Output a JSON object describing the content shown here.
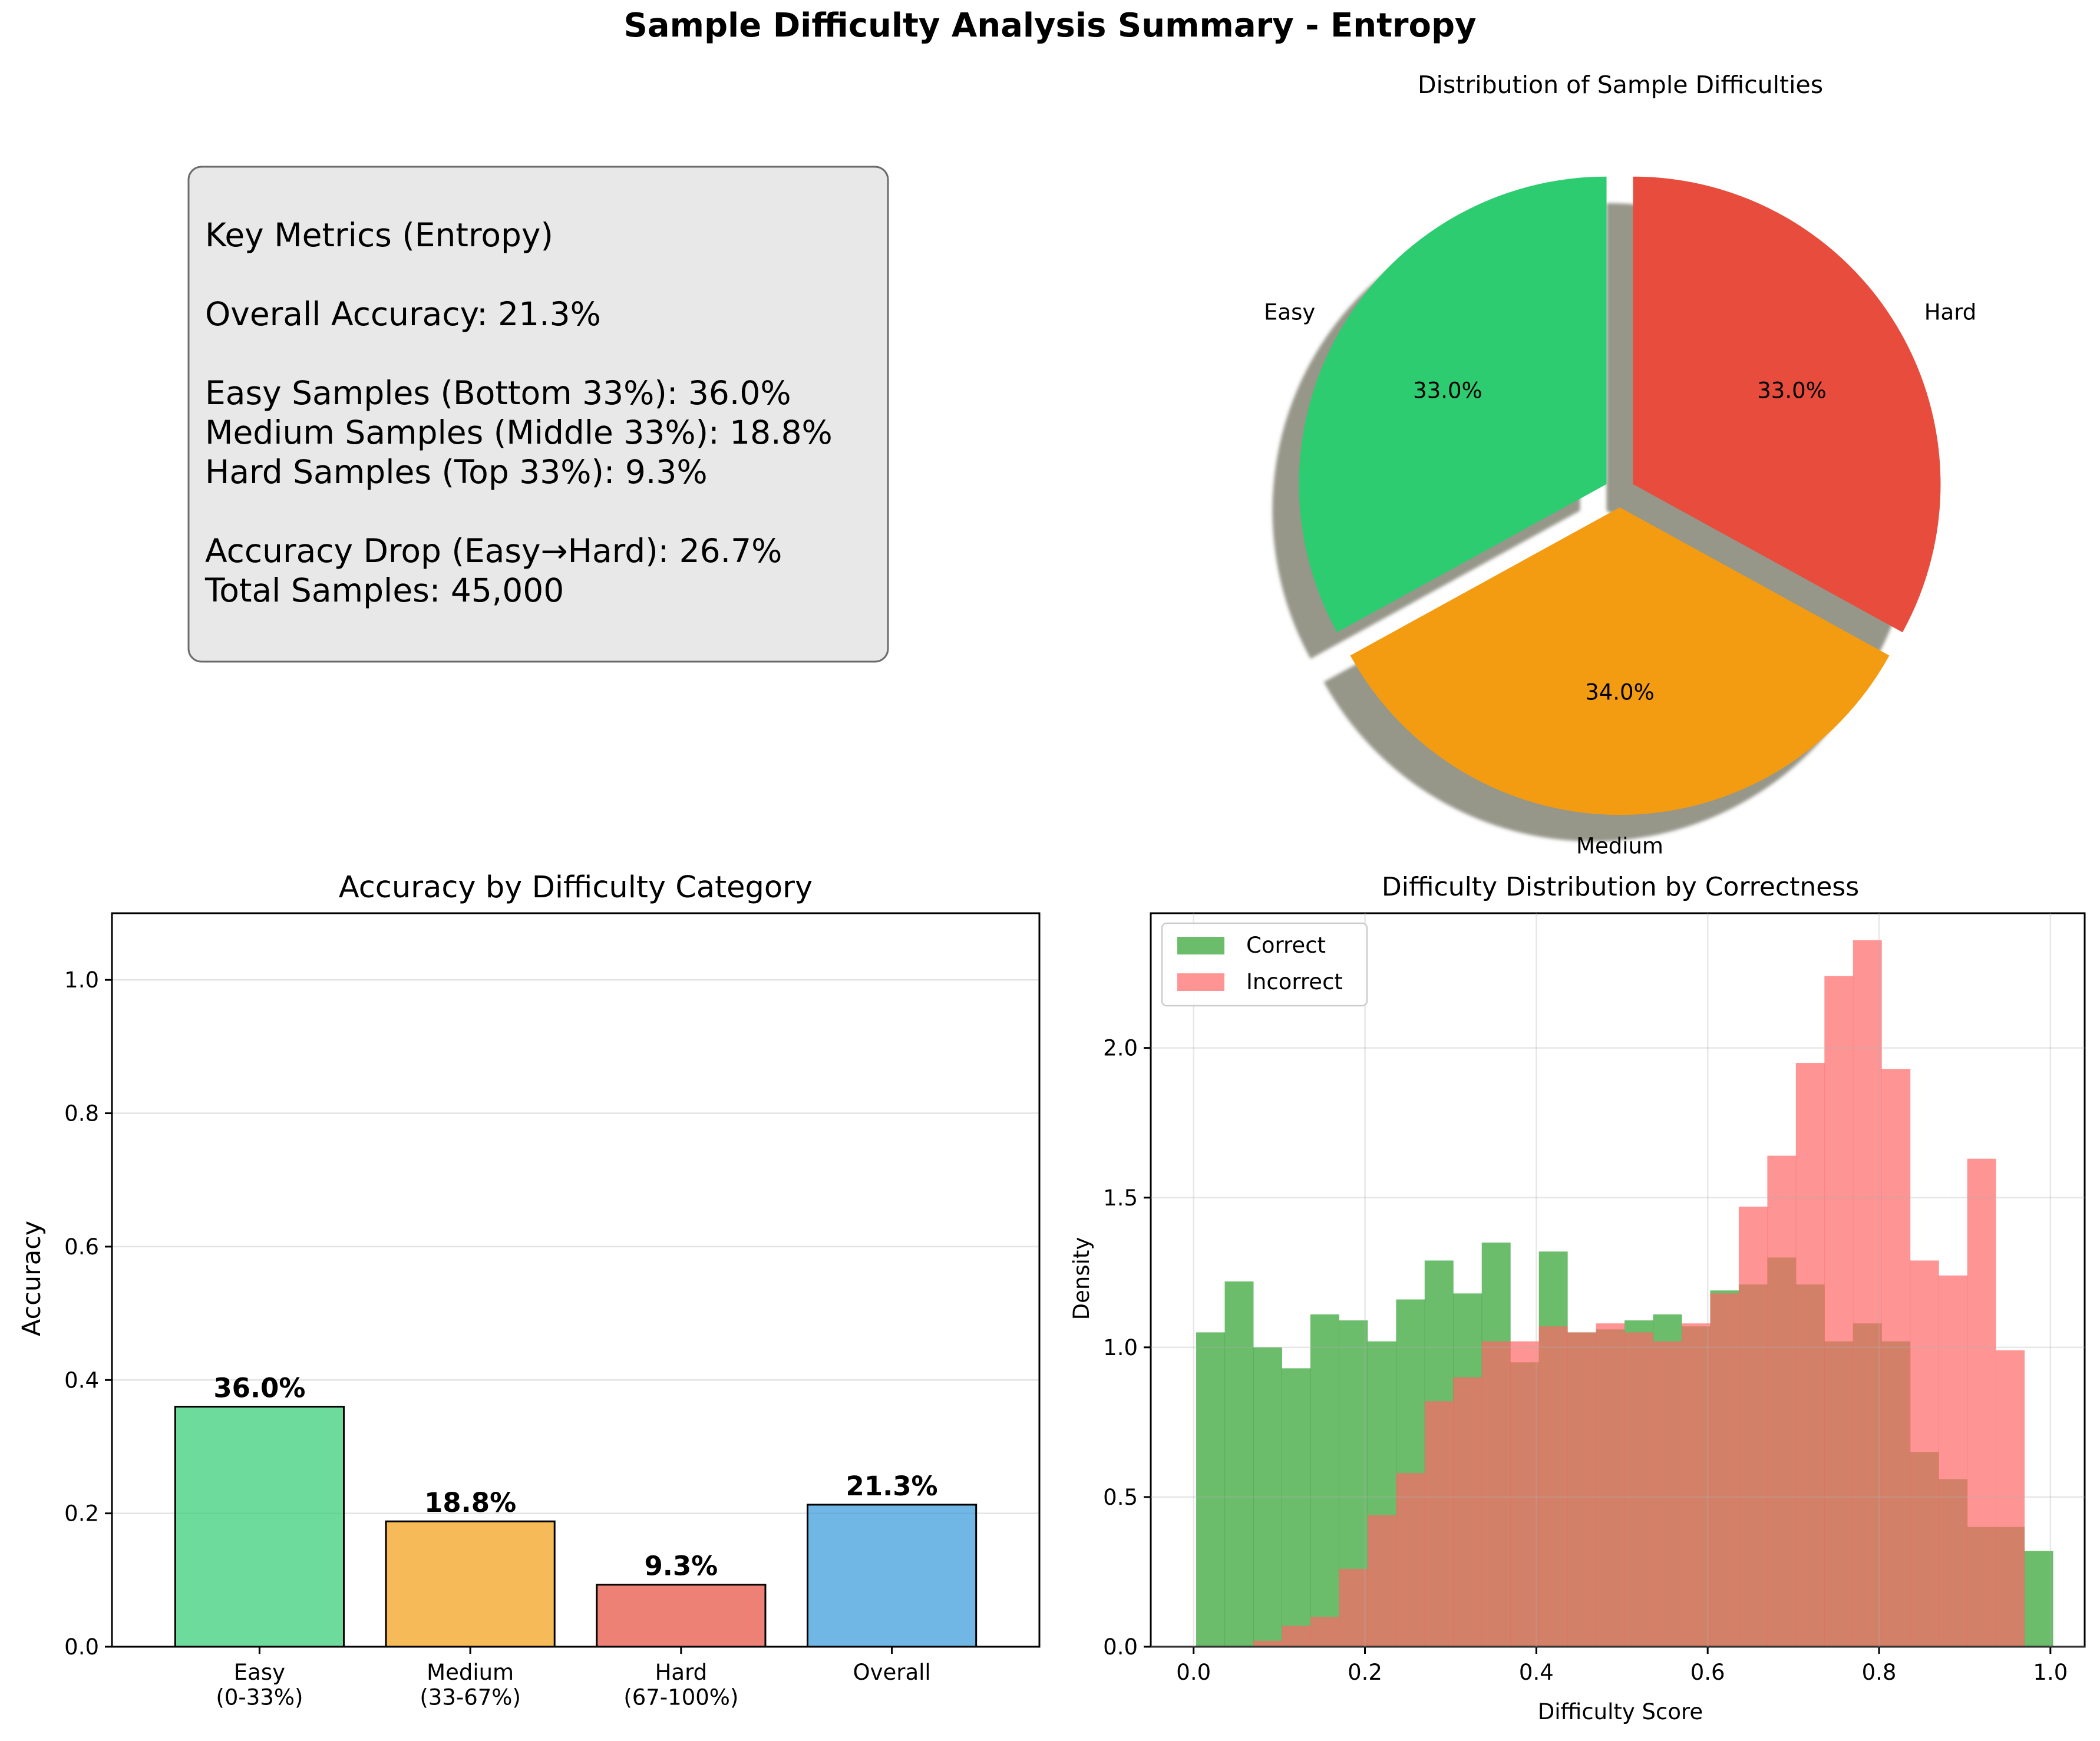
{
  "suptitle": "Sample Difficulty Analysis Summary - Entropy",
  "metrics_box": {
    "lines": [
      "Key Metrics (Entropy)",
      "",
      "Overall Accuracy: 21.3%",
      "",
      "Easy Samples (Bottom 33%): 36.0%",
      "Medium Samples (Middle 33%): 18.8%",
      "Hard Samples (Top 33%): 9.3%",
      "",
      "Accuracy Drop (Easy→Hard): 26.7%",
      "Total Samples: 45,000"
    ]
  },
  "chart_data": [
    {
      "type": "pie",
      "title": "Distribution of Sample Difficulties",
      "labels": [
        "Easy",
        "Medium",
        "Hard"
      ],
      "values": [
        33.0,
        34.0,
        33.0
      ],
      "value_labels": [
        "33.0%",
        "34.0%",
        "33.0%"
      ],
      "colors": [
        "#2ecc71",
        "#f39c12",
        "#e74c3c"
      ],
      "start_angle_deg": 90,
      "explode": [
        0.05,
        0.05,
        0.05
      ],
      "shadow": true
    },
    {
      "type": "bar",
      "title": "Accuracy by Difficulty Category",
      "categories": [
        "Easy\n(0-33%)",
        "Medium\n(33-67%)",
        "Hard\n(67-100%)",
        "Overall"
      ],
      "values": [
        0.36,
        0.188,
        0.093,
        0.213
      ],
      "value_labels": [
        "36.0%",
        "18.8%",
        "9.3%",
        "21.3%"
      ],
      "colors": [
        "#2ecc71",
        "#f39c12",
        "#e74c3c",
        "#3498db"
      ],
      "ylabel": "Accuracy",
      "ylim": [
        0,
        1.1
      ],
      "yticks": [
        0.0,
        0.2,
        0.4,
        0.6,
        0.8,
        1.0
      ],
      "ytick_labels": [
        "0.0",
        "0.2",
        "0.4",
        "0.6",
        "0.8",
        "1.0"
      ],
      "grid": "y"
    },
    {
      "type": "histogram",
      "title": "Difficulty Distribution by Correctness",
      "xlabel": "Difficulty Score",
      "ylabel": "Density",
      "xlim": [
        -0.05,
        1.04
      ],
      "ylim": [
        0,
        2.45
      ],
      "xticks": [
        0.0,
        0.2,
        0.4,
        0.6,
        0.8,
        1.0
      ],
      "xtick_labels": [
        "0.0",
        "0.2",
        "0.4",
        "0.6",
        "0.8",
        "1.0"
      ],
      "yticks": [
        0.0,
        0.5,
        1.0,
        1.5,
        2.0
      ],
      "ytick_labels": [
        "0.0",
        "0.5",
        "1.0",
        "1.5",
        "2.0"
      ],
      "grid": "both",
      "legend_position": "upper left",
      "bin_start": 0.003,
      "bin_width": 0.03333,
      "series": [
        {
          "name": "Correct",
          "color": "#2ca02c",
          "values": [
            1.05,
            1.22,
            1.0,
            0.93,
            1.11,
            1.09,
            1.02,
            1.16,
            1.29,
            1.18,
            1.35,
            0.95,
            1.32,
            1.05,
            1.06,
            1.09,
            1.11,
            1.07,
            1.19,
            1.21,
            1.3,
            1.21,
            1.02,
            1.08,
            1.02,
            0.65,
            0.56,
            0.4,
            0.4,
            0.32
          ]
        },
        {
          "name": "Incorrect",
          "color": "#ff6666",
          "values": [
            0.0,
            0.0,
            0.02,
            0.07,
            0.1,
            0.26,
            0.44,
            0.58,
            0.82,
            0.9,
            1.02,
            1.02,
            1.07,
            1.05,
            1.08,
            1.05,
            1.02,
            1.08,
            1.18,
            1.47,
            1.64,
            1.95,
            2.24,
            2.36,
            1.93,
            1.29,
            1.24,
            1.63,
            0.99,
            0.0
          ]
        }
      ]
    }
  ]
}
